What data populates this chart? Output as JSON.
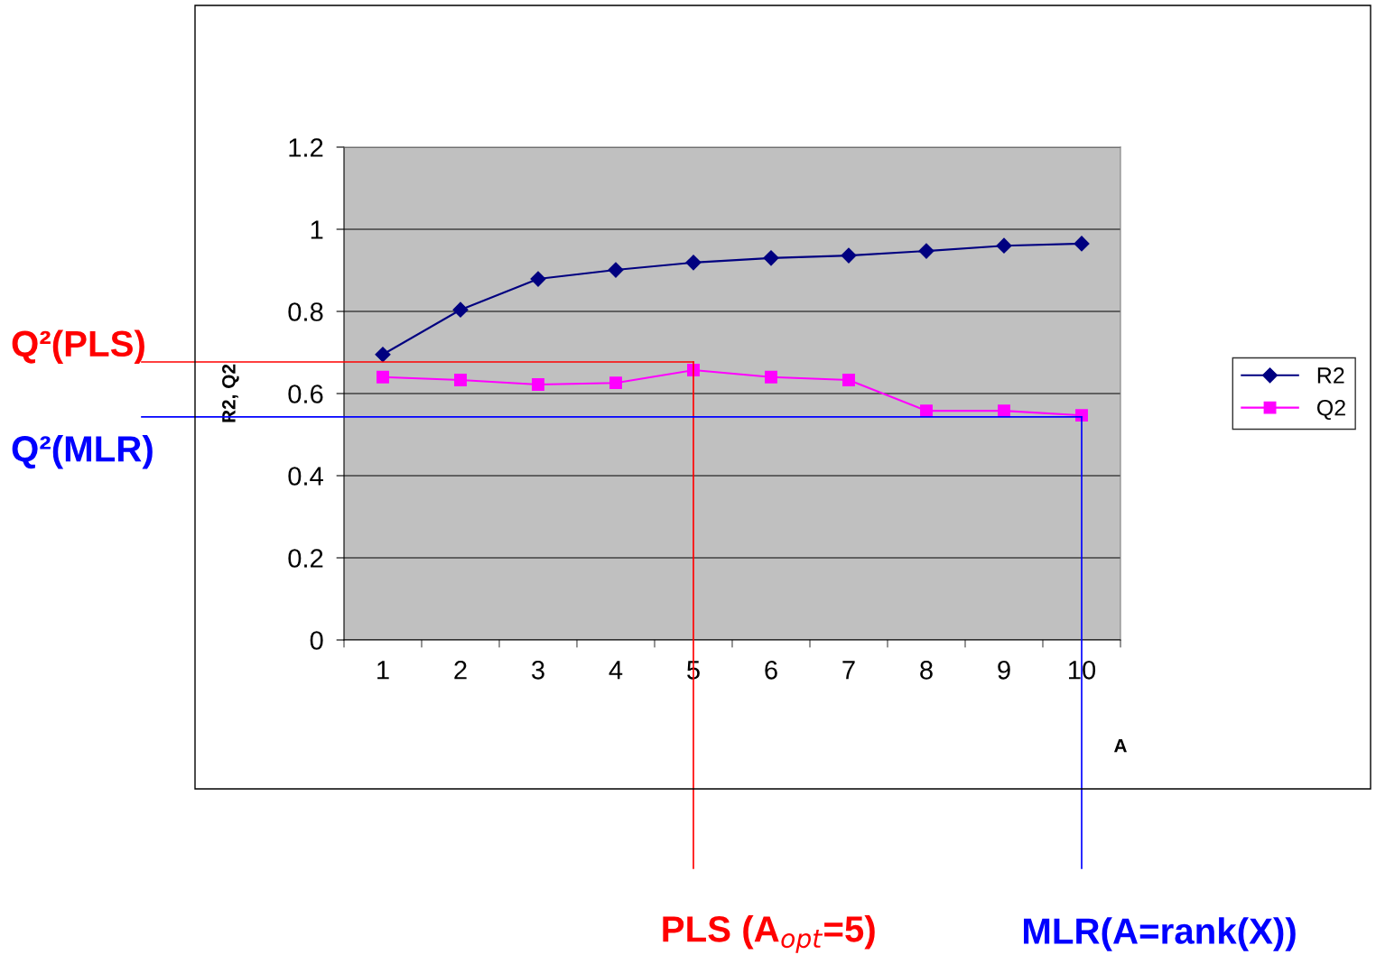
{
  "chart_data": {
    "type": "line",
    "xlabel": "A",
    "ylabel": "R2, Q2",
    "categories": [
      "1",
      "2",
      "3",
      "4",
      "5",
      "6",
      "7",
      "8",
      "9",
      "10"
    ],
    "series": [
      {
        "name": "R2",
        "color": "#000080",
        "marker": "diamond",
        "values": [
          0.695,
          0.804,
          0.879,
          0.901,
          0.919,
          0.93,
          0.936,
          0.947,
          0.96,
          0.965
        ]
      },
      {
        "name": "Q2",
        "color": "#ff00ff",
        "marker": "square",
        "values": [
          0.64,
          0.633,
          0.622,
          0.626,
          0.657,
          0.64,
          0.633,
          0.558,
          0.558,
          0.547
        ]
      }
    ],
    "ylim": [
      0,
      1.2
    ],
    "yticks": [
      0,
      0.2,
      0.4,
      0.6,
      0.8,
      1,
      1.2
    ],
    "grid": "y",
    "legend": "right",
    "ref_lines": [
      {
        "axis": "y",
        "value": 0.677,
        "label": "Q²(PLS)",
        "color": "#ff0000"
      },
      {
        "axis": "x",
        "value": "5",
        "label": "PLS (A$_{opt}$=5)",
        "color": "#ff0000"
      },
      {
        "axis": "y",
        "value": 0.543,
        "label": "Q²(MLR)",
        "color": "#0000ff"
      },
      {
        "axis": "x",
        "value": "10",
        "label": "MLR(A=rank(X))",
        "color": "#0000ff"
      }
    ]
  }
}
